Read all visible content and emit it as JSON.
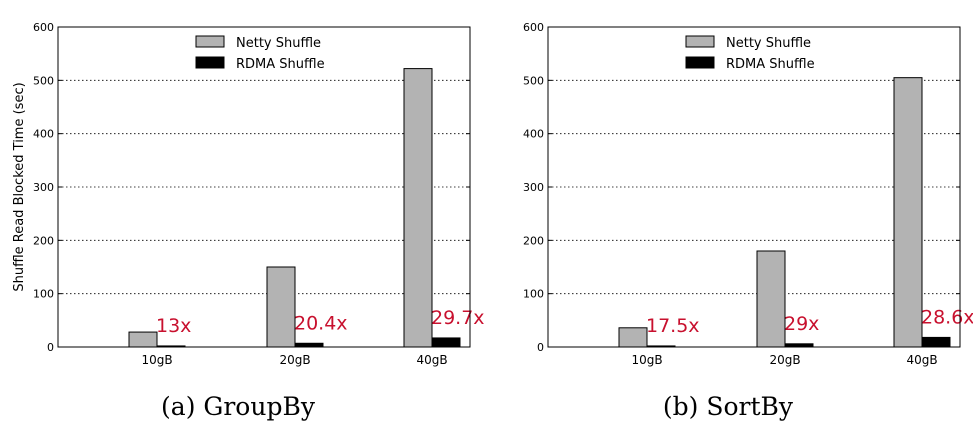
{
  "chart_data": [
    {
      "type": "bar",
      "title": "",
      "caption": "(a)  GroupBy",
      "xlabel": "",
      "ylabel": "Shuffle Read Blocked Time (sec)",
      "ylim": [
        0,
        600
      ],
      "yticks": [
        0,
        100,
        200,
        300,
        400,
        500,
        600
      ],
      "grid": "horizontal-dotted",
      "legend_position": "top-center",
      "categories": [
        "10gB",
        "20gB",
        "40gB"
      ],
      "series": [
        {
          "name": "Netty Shuffle",
          "color": "#b3b3b3",
          "values": [
            28,
            150,
            522
          ]
        },
        {
          "name": "RDMA Shuffle",
          "color": "#000000",
          "values": [
            2,
            7,
            17
          ]
        }
      ],
      "annotations": [
        "13x",
        "20.4x",
        "29.7x"
      ]
    },
    {
      "type": "bar",
      "title": "",
      "caption": "(b)  SortBy",
      "xlabel": "",
      "ylabel": "",
      "ylim": [
        0,
        600
      ],
      "yticks": [
        0,
        100,
        200,
        300,
        400,
        500,
        600
      ],
      "grid": "horizontal-dotted",
      "legend_position": "top-center",
      "categories": [
        "10gB",
        "20gB",
        "40gB"
      ],
      "series": [
        {
          "name": "Netty Shuffle",
          "color": "#b3b3b3",
          "values": [
            36,
            180,
            505
          ]
        },
        {
          "name": "RDMA Shuffle",
          "color": "#000000",
          "values": [
            2,
            6,
            18
          ]
        }
      ],
      "annotations": [
        "17.5x",
        "29x",
        "28.6x"
      ]
    }
  ]
}
